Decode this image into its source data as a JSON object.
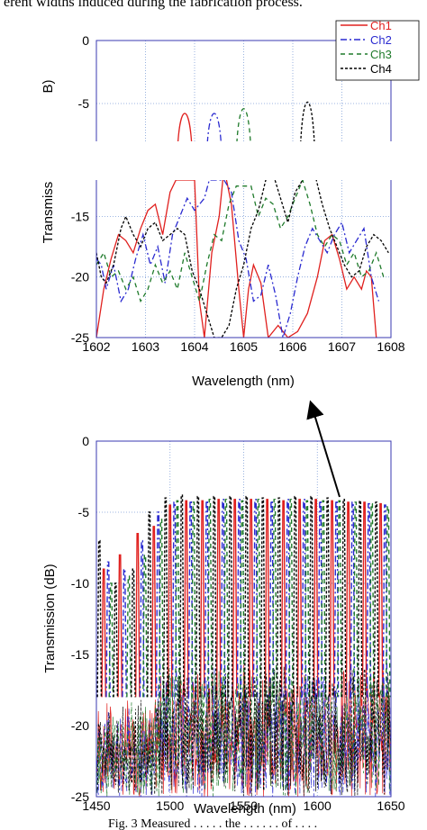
{
  "caption_top": "erent widths induced during the fabrication process.",
  "caption_bottom": "Fig. 3 Measured . . . . .  the . . . . . . of . . . .",
  "arrow": "annotation arrow",
  "colors": {
    "Ch1": "#e0201e",
    "Ch2": "#2a2ad0",
    "Ch3": "#1e7a2a",
    "Ch4": "#000000",
    "grid": "#7f9fd8",
    "frame": "#3a3ab0"
  },
  "chart_data": [
    {
      "type": "line",
      "title": "",
      "xlabel": "Wavelength (nm)",
      "ylabel": "Transmiss      B)",
      "ylim": [
        -25,
        0
      ],
      "xlim": [
        1602,
        1608
      ],
      "x_ticks": [
        "1602",
        "1603",
        "1604",
        "1605",
        "1606",
        "1607",
        "1608"
      ],
      "y_ticks": [
        "0",
        "-5",
        "-15",
        "-20",
        "-25"
      ],
      "grid": true,
      "legend": "top-right",
      "axis_break": [
        -8,
        -12
      ],
      "series": [
        {
          "name": "Ch1",
          "peaks": [
            {
              "x": 1603.8,
              "y": -5.0
            }
          ],
          "x": [
            1602.0,
            1602.15,
            1602.3,
            1602.45,
            1602.6,
            1602.75,
            1602.9,
            1603.05,
            1603.2,
            1603.35,
            1603.5,
            1603.62,
            1604.0,
            1604.1,
            1604.2,
            1604.35,
            1604.5,
            1604.6,
            1604.75,
            1604.9,
            1605.0,
            1605.1,
            1605.2,
            1605.35,
            1605.5,
            1605.7,
            1605.9,
            1606.1,
            1606.3,
            1606.5,
            1606.65,
            1606.8,
            1606.95,
            1607.1,
            1607.25,
            1607.4,
            1607.5,
            1607.6,
            1607.7
          ],
          "y": [
            -25.0,
            -21.0,
            -18.5,
            -16.5,
            -17.0,
            -18.0,
            -16.0,
            -14.5,
            -14.0,
            -16.5,
            -13.0,
            -12.0,
            -12.0,
            -22.0,
            -25.0,
            -18.0,
            -15.0,
            -11.0,
            -14.0,
            -21.0,
            -25.0,
            -21.0,
            -19.0,
            -20.5,
            -25.0,
            -24.0,
            -25.0,
            -24.5,
            -23.0,
            -20.0,
            -17.0,
            -16.5,
            -18.5,
            -21.0,
            -20.0,
            -21.0,
            -19.5,
            -20.0,
            -25.0
          ]
        },
        {
          "name": "Ch2",
          "peaks": [
            {
              "x": 1604.4,
              "y": -5.0
            }
          ],
          "x": [
            1602.0,
            1602.1,
            1602.2,
            1602.35,
            1602.5,
            1602.65,
            1602.8,
            1602.95,
            1603.1,
            1603.25,
            1603.4,
            1603.55,
            1603.7,
            1603.85,
            1604.0,
            1604.2,
            1604.3,
            1604.6,
            1604.75,
            1604.9,
            1605.05,
            1605.2,
            1605.35,
            1605.5,
            1605.65,
            1605.8,
            1605.95,
            1606.1,
            1606.25,
            1606.4,
            1606.55,
            1606.7,
            1606.85,
            1607.0,
            1607.15,
            1607.3,
            1607.45,
            1607.6,
            1607.75
          ],
          "y": [
            -18.5,
            -19.0,
            -21.0,
            -19.0,
            -22.0,
            -21.0,
            -18.5,
            -16.5,
            -19.0,
            -17.5,
            -20.5,
            -16.5,
            -15.0,
            -13.5,
            -14.5,
            -13.5,
            -12.0,
            -12.0,
            -13.0,
            -17.0,
            -18.5,
            -22.0,
            -21.5,
            -19.0,
            -21.5,
            -25.0,
            -23.0,
            -20.0,
            -17.5,
            -16.0,
            -17.0,
            -18.0,
            -16.5,
            -15.5,
            -18.0,
            -17.0,
            -16.0,
            -20.0,
            -22.0
          ]
        },
        {
          "name": "Ch3",
          "peaks": [
            {
              "x": 1605.0,
              "y": -4.5
            }
          ],
          "x": [
            1602.0,
            1602.15,
            1602.3,
            1602.45,
            1602.6,
            1602.75,
            1602.9,
            1603.05,
            1603.2,
            1603.35,
            1603.5,
            1603.65,
            1603.8,
            1603.95,
            1604.1,
            1604.25,
            1604.4,
            1604.55,
            1604.7,
            1604.85,
            1605.15,
            1605.3,
            1605.45,
            1605.6,
            1605.75,
            1605.9,
            1606.05,
            1606.2,
            1606.35,
            1606.5,
            1606.65,
            1606.8,
            1606.95,
            1607.1,
            1607.25,
            1607.4,
            1607.55,
            1607.7,
            1607.85
          ],
          "y": [
            -19.0,
            -18.0,
            -20.0,
            -19.5,
            -21.0,
            -20.0,
            -22.0,
            -21.0,
            -19.0,
            -20.5,
            -19.5,
            -21.0,
            -18.0,
            -20.0,
            -22.0,
            -19.0,
            -16.5,
            -17.0,
            -14.0,
            -12.5,
            -12.5,
            -15.0,
            -13.5,
            -14.0,
            -16.0,
            -15.0,
            -13.5,
            -12.0,
            -14.0,
            -16.5,
            -17.5,
            -16.5,
            -17.0,
            -19.0,
            -18.0,
            -20.0,
            -19.5,
            -18.0,
            -20.0
          ]
        },
        {
          "name": "Ch4",
          "peaks": [
            {
              "x": 1606.3,
              "y": -3.8
            }
          ],
          "x": [
            1602.0,
            1602.1,
            1602.2,
            1602.35,
            1602.5,
            1602.6,
            1602.75,
            1602.9,
            1603.05,
            1603.2,
            1603.35,
            1603.5,
            1603.65,
            1603.8,
            1603.95,
            1604.1,
            1604.25,
            1604.4,
            1604.55,
            1604.7,
            1604.85,
            1605.0,
            1605.15,
            1605.3,
            1605.45,
            1605.6,
            1605.75,
            1605.9,
            1606.05,
            1606.2,
            1606.45,
            1606.6,
            1606.75,
            1606.9,
            1607.05,
            1607.2,
            1607.35,
            1607.5,
            1607.65,
            1607.8,
            1607.95
          ],
          "y": [
            -18.0,
            -20.0,
            -20.5,
            -19.0,
            -16.0,
            -15.0,
            -16.5,
            -17.5,
            -16.0,
            -15.5,
            -17.0,
            -16.5,
            -16.0,
            -16.5,
            -19.5,
            -21.0,
            -23.0,
            -25.0,
            -25.0,
            -24.0,
            -21.0,
            -19.0,
            -16.0,
            -14.5,
            -12.0,
            -11.5,
            -13.5,
            -15.5,
            -13.0,
            -12.0,
            -11.5,
            -14.0,
            -16.0,
            -17.5,
            -19.0,
            -20.0,
            -19.5,
            -17.5,
            -16.5,
            -17.0,
            -18.0
          ]
        }
      ]
    },
    {
      "type": "line",
      "title": "",
      "xlabel": "Wavelength (nm)",
      "ylabel": "Transmission (dB)",
      "xlim": [
        1450,
        1650
      ],
      "ylim": [
        -25,
        0
      ],
      "x_ticks": [
        "1450",
        "1500",
        "1550",
        "1600",
        "1650"
      ],
      "y_ticks": [
        "0",
        "-5",
        "-10",
        "-15",
        "-20",
        "-25"
      ],
      "grid": true,
      "series": [
        {
          "name": "Ch1",
          "peak_x": [
            1455,
            1466,
            1478,
            1489,
            1500,
            1511,
            1522,
            1533,
            1544,
            1555,
            1566,
            1577,
            1588,
            1599,
            1610,
            1621,
            1632,
            1643
          ],
          "peak_y": [
            -9,
            -8,
            -6.5,
            -6,
            -4.5,
            -4.2,
            -4.2,
            -4.1,
            -4.1,
            -4.1,
            -4.1,
            -4.2,
            -4.1,
            -4.1,
            -4.2,
            -4.3,
            -4.3,
            -4.4
          ]
        },
        {
          "name": "Ch2",
          "peak_x": [
            1458,
            1469,
            1481,
            1492,
            1503,
            1514,
            1525,
            1536,
            1547,
            1558,
            1569,
            1580,
            1591,
            1602,
            1613,
            1624,
            1635,
            1646
          ],
          "peak_y": [
            -8.5,
            -9,
            -7,
            -5,
            -4.3,
            -4.2,
            -4.2,
            -4.1,
            -4.1,
            -4.1,
            -4.2,
            -4.1,
            -4.1,
            -4.2,
            -4.2,
            -4.3,
            -4.4,
            -4.5
          ]
        },
        {
          "name": "Ch3",
          "peak_x": [
            1460,
            1472,
            1483,
            1494,
            1505,
            1516,
            1527,
            1538,
            1549,
            1560,
            1571,
            1582,
            1593,
            1604,
            1615,
            1626,
            1637,
            1648
          ],
          "peak_y": [
            -10,
            -9.5,
            -8,
            -5.5,
            -4.2,
            -4.3,
            -4.1,
            -4.1,
            -4.2,
            -4.1,
            -4.1,
            -4.1,
            -4.2,
            -4.2,
            -4.2,
            -4.3,
            -4.4,
            -4.6
          ]
        },
        {
          "name": "Ch4",
          "peak_x": [
            1452,
            1463,
            1475,
            1486,
            1497,
            1508,
            1519,
            1530,
            1541,
            1552,
            1563,
            1574,
            1585,
            1596,
            1607,
            1618,
            1629,
            1640
          ],
          "peak_y": [
            -7,
            -10,
            -9,
            -5,
            -4,
            -3.8,
            -3.9,
            -3.9,
            -3.9,
            -3.9,
            -4,
            -4,
            -3.9,
            -3.9,
            -4,
            -4.1,
            -4.2,
            -4.3
          ]
        }
      ],
      "floor_range": [
        -25,
        -15.5
      ]
    }
  ]
}
